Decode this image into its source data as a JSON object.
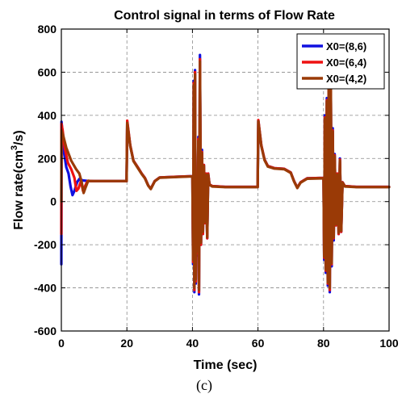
{
  "chart_data": {
    "type": "line",
    "title": "Control signal in terms of Flow Rate",
    "xlabel": "Time (sec)",
    "ylabel_main": "Flow rate(cm",
    "ylabel_sup": "3",
    "ylabel_tail": "/s)",
    "caption": "(c)",
    "xlim": [
      0,
      100
    ],
    "ylim": [
      -600,
      800
    ],
    "xticks": [
      0,
      20,
      40,
      60,
      80,
      100
    ],
    "yticks": [
      -600,
      -400,
      -200,
      0,
      200,
      400,
      600,
      800
    ],
    "grid": true,
    "legend_position": "top-right",
    "series": [
      {
        "name": "X0=(8,6)",
        "color": "#1010e0",
        "points": [
          [
            0,
            -290
          ],
          [
            0.05,
            370
          ],
          [
            0.3,
            330
          ],
          [
            0.8,
            230
          ],
          [
            1.5,
            160
          ],
          [
            2.2,
            130
          ],
          [
            2.8,
            70
          ],
          [
            3.4,
            30
          ],
          [
            4.0,
            50
          ],
          [
            4.8,
            90
          ],
          [
            5.5,
            105
          ],
          [
            6.5,
            98
          ],
          [
            8,
            96
          ],
          [
            10,
            95
          ],
          [
            19.9,
            95
          ],
          [
            20.1,
            370
          ],
          [
            21,
            260
          ],
          [
            22,
            190
          ],
          [
            23.5,
            155
          ],
          [
            24.5,
            130
          ],
          [
            25.5,
            110
          ],
          [
            26.5,
            75
          ],
          [
            27.3,
            60
          ],
          [
            28.5,
            95
          ],
          [
            30,
            112
          ],
          [
            35,
            115
          ],
          [
            40,
            118
          ],
          [
            40.2,
            -290
          ],
          [
            40.4,
            560
          ],
          [
            40.6,
            -420
          ],
          [
            40.8,
            610
          ],
          [
            41.0,
            -380
          ],
          [
            41.2,
            100
          ],
          [
            41.5,
            -250
          ],
          [
            41.8,
            300
          ],
          [
            42.0,
            -430
          ],
          [
            42.3,
            680
          ],
          [
            42.6,
            -200
          ],
          [
            42.9,
            240
          ],
          [
            43.2,
            -150
          ],
          [
            43.5,
            170
          ],
          [
            43.8,
            -100
          ],
          [
            44.1,
            130
          ],
          [
            44.5,
            -170
          ],
          [
            44.8,
            130
          ],
          [
            45.2,
            80
          ],
          [
            46,
            72
          ],
          [
            50,
            68
          ],
          [
            59.9,
            68
          ],
          [
            60.1,
            375
          ],
          [
            61,
            260
          ],
          [
            62,
            195
          ],
          [
            63,
            165
          ],
          [
            65,
            155
          ],
          [
            68,
            152
          ],
          [
            70,
            135
          ],
          [
            71,
            95
          ],
          [
            72,
            65
          ],
          [
            73,
            90
          ],
          [
            75,
            108
          ],
          [
            80,
            110
          ],
          [
            80.2,
            -270
          ],
          [
            80.4,
            400
          ],
          [
            80.7,
            -330
          ],
          [
            81.0,
            480
          ],
          [
            81.3,
            -390
          ],
          [
            81.6,
            620
          ],
          [
            81.9,
            -420
          ],
          [
            82.2,
            650
          ],
          [
            82.5,
            -300
          ],
          [
            82.8,
            340
          ],
          [
            83.1,
            -180
          ],
          [
            83.4,
            220
          ],
          [
            83.8,
            -110
          ],
          [
            84.2,
            130
          ],
          [
            84.6,
            -150
          ],
          [
            85.0,
            200
          ],
          [
            85.4,
            -140
          ],
          [
            85.8,
            90
          ],
          [
            86.5,
            72
          ],
          [
            90,
            68
          ],
          [
            100,
            68
          ]
        ]
      },
      {
        "name": "X0=(6,4)",
        "color": "#ee1111",
        "points": [
          [
            0,
            -150
          ],
          [
            0.05,
            360
          ],
          [
            0.4,
            330
          ],
          [
            1.0,
            250
          ],
          [
            2,
            180
          ],
          [
            3,
            150
          ],
          [
            4,
            110
          ],
          [
            4.6,
            50
          ],
          [
            5.2,
            60
          ],
          [
            6,
            95
          ],
          [
            6.6,
            50
          ],
          [
            7.2,
            70
          ],
          [
            8,
            96
          ],
          [
            10,
            95
          ],
          [
            19.9,
            95
          ],
          [
            20.1,
            375
          ],
          [
            21,
            262
          ],
          [
            22,
            190
          ],
          [
            23.5,
            155
          ],
          [
            24.5,
            130
          ],
          [
            25.5,
            110
          ],
          [
            26.5,
            75
          ],
          [
            27.3,
            60
          ],
          [
            28.5,
            95
          ],
          [
            30,
            112
          ],
          [
            35,
            115
          ],
          [
            40,
            118
          ],
          [
            40.2,
            -280
          ],
          [
            40.4,
            550
          ],
          [
            40.6,
            -410
          ],
          [
            40.8,
            600
          ],
          [
            41.0,
            -370
          ],
          [
            41.2,
            100
          ],
          [
            41.5,
            -240
          ],
          [
            41.8,
            290
          ],
          [
            42.0,
            -420
          ],
          [
            42.3,
            660
          ],
          [
            42.6,
            -200
          ],
          [
            42.9,
            230
          ],
          [
            43.2,
            -150
          ],
          [
            43.5,
            170
          ],
          [
            43.8,
            -100
          ],
          [
            44.1,
            130
          ],
          [
            44.5,
            -170
          ],
          [
            44.8,
            130
          ],
          [
            45.2,
            80
          ],
          [
            46,
            72
          ],
          [
            50,
            68
          ],
          [
            59.9,
            68
          ],
          [
            60.1,
            378
          ],
          [
            61,
            262
          ],
          [
            62,
            195
          ],
          [
            63,
            165
          ],
          [
            65,
            155
          ],
          [
            68,
            152
          ],
          [
            70,
            135
          ],
          [
            71,
            95
          ],
          [
            72,
            65
          ],
          [
            73,
            90
          ],
          [
            75,
            108
          ],
          [
            80,
            110
          ],
          [
            80.2,
            -260
          ],
          [
            80.4,
            390
          ],
          [
            80.7,
            -320
          ],
          [
            81.0,
            470
          ],
          [
            81.3,
            -380
          ],
          [
            81.6,
            610
          ],
          [
            81.9,
            -410
          ],
          [
            82.2,
            640
          ],
          [
            82.5,
            -290
          ],
          [
            82.8,
            330
          ],
          [
            83.1,
            -170
          ],
          [
            83.4,
            215
          ],
          [
            83.8,
            -110
          ],
          [
            84.2,
            130
          ],
          [
            84.6,
            -150
          ],
          [
            85.0,
            195
          ],
          [
            85.4,
            -140
          ],
          [
            85.8,
            90
          ],
          [
            86.5,
            72
          ],
          [
            90,
            68
          ],
          [
            100,
            68
          ]
        ]
      },
      {
        "name": "X0=(4,2)",
        "color": "#9a3a06",
        "points": [
          [
            0,
            0
          ],
          [
            0.05,
            330
          ],
          [
            0.5,
            310
          ],
          [
            1.5,
            250
          ],
          [
            3,
            190
          ],
          [
            4.5,
            150
          ],
          [
            5.5,
            130
          ],
          [
            6.2,
            90
          ],
          [
            6.8,
            40
          ],
          [
            7.5,
            70
          ],
          [
            8.2,
            97
          ],
          [
            9,
            95
          ],
          [
            10,
            95
          ],
          [
            19.9,
            95
          ],
          [
            20.1,
            365
          ],
          [
            21,
            258
          ],
          [
            22,
            188
          ],
          [
            23.5,
            152
          ],
          [
            24.5,
            128
          ],
          [
            25.5,
            108
          ],
          [
            26.5,
            74
          ],
          [
            27.3,
            58
          ],
          [
            28.5,
            94
          ],
          [
            30,
            111
          ],
          [
            35,
            114
          ],
          [
            40,
            117
          ],
          [
            40.2,
            -270
          ],
          [
            40.4,
            540
          ],
          [
            40.6,
            -400
          ],
          [
            40.8,
            590
          ],
          [
            41.0,
            -360
          ],
          [
            41.2,
            100
          ],
          [
            41.5,
            -230
          ],
          [
            41.8,
            280
          ],
          [
            42.0,
            -410
          ],
          [
            42.3,
            650
          ],
          [
            42.6,
            -190
          ],
          [
            42.9,
            225
          ],
          [
            43.2,
            -140
          ],
          [
            43.5,
            165
          ],
          [
            43.8,
            -95
          ],
          [
            44.1,
            125
          ],
          [
            44.5,
            -165
          ],
          [
            44.8,
            125
          ],
          [
            45.2,
            78
          ],
          [
            46,
            70
          ],
          [
            50,
            67
          ],
          [
            59.9,
            67
          ],
          [
            60.1,
            372
          ],
          [
            61,
            258
          ],
          [
            62,
            192
          ],
          [
            63,
            162
          ],
          [
            65,
            153
          ],
          [
            68,
            150
          ],
          [
            70,
            133
          ],
          [
            71,
            93
          ],
          [
            72,
            63
          ],
          [
            73,
            88
          ],
          [
            75,
            106
          ],
          [
            80,
            108
          ],
          [
            80.2,
            -255
          ],
          [
            80.4,
            385
          ],
          [
            80.7,
            -315
          ],
          [
            81.0,
            465
          ],
          [
            81.3,
            -375
          ],
          [
            81.6,
            600
          ],
          [
            81.9,
            -400
          ],
          [
            82.2,
            630
          ],
          [
            82.5,
            -285
          ],
          [
            82.8,
            325
          ],
          [
            83.1,
            -165
          ],
          [
            83.4,
            210
          ],
          [
            83.8,
            -105
          ],
          [
            84.2,
            125
          ],
          [
            84.6,
            -145
          ],
          [
            85.0,
            190
          ],
          [
            85.4,
            -135
          ],
          [
            85.8,
            88
          ],
          [
            86.5,
            70
          ],
          [
            90,
            67
          ],
          [
            100,
            67
          ]
        ]
      }
    ]
  }
}
